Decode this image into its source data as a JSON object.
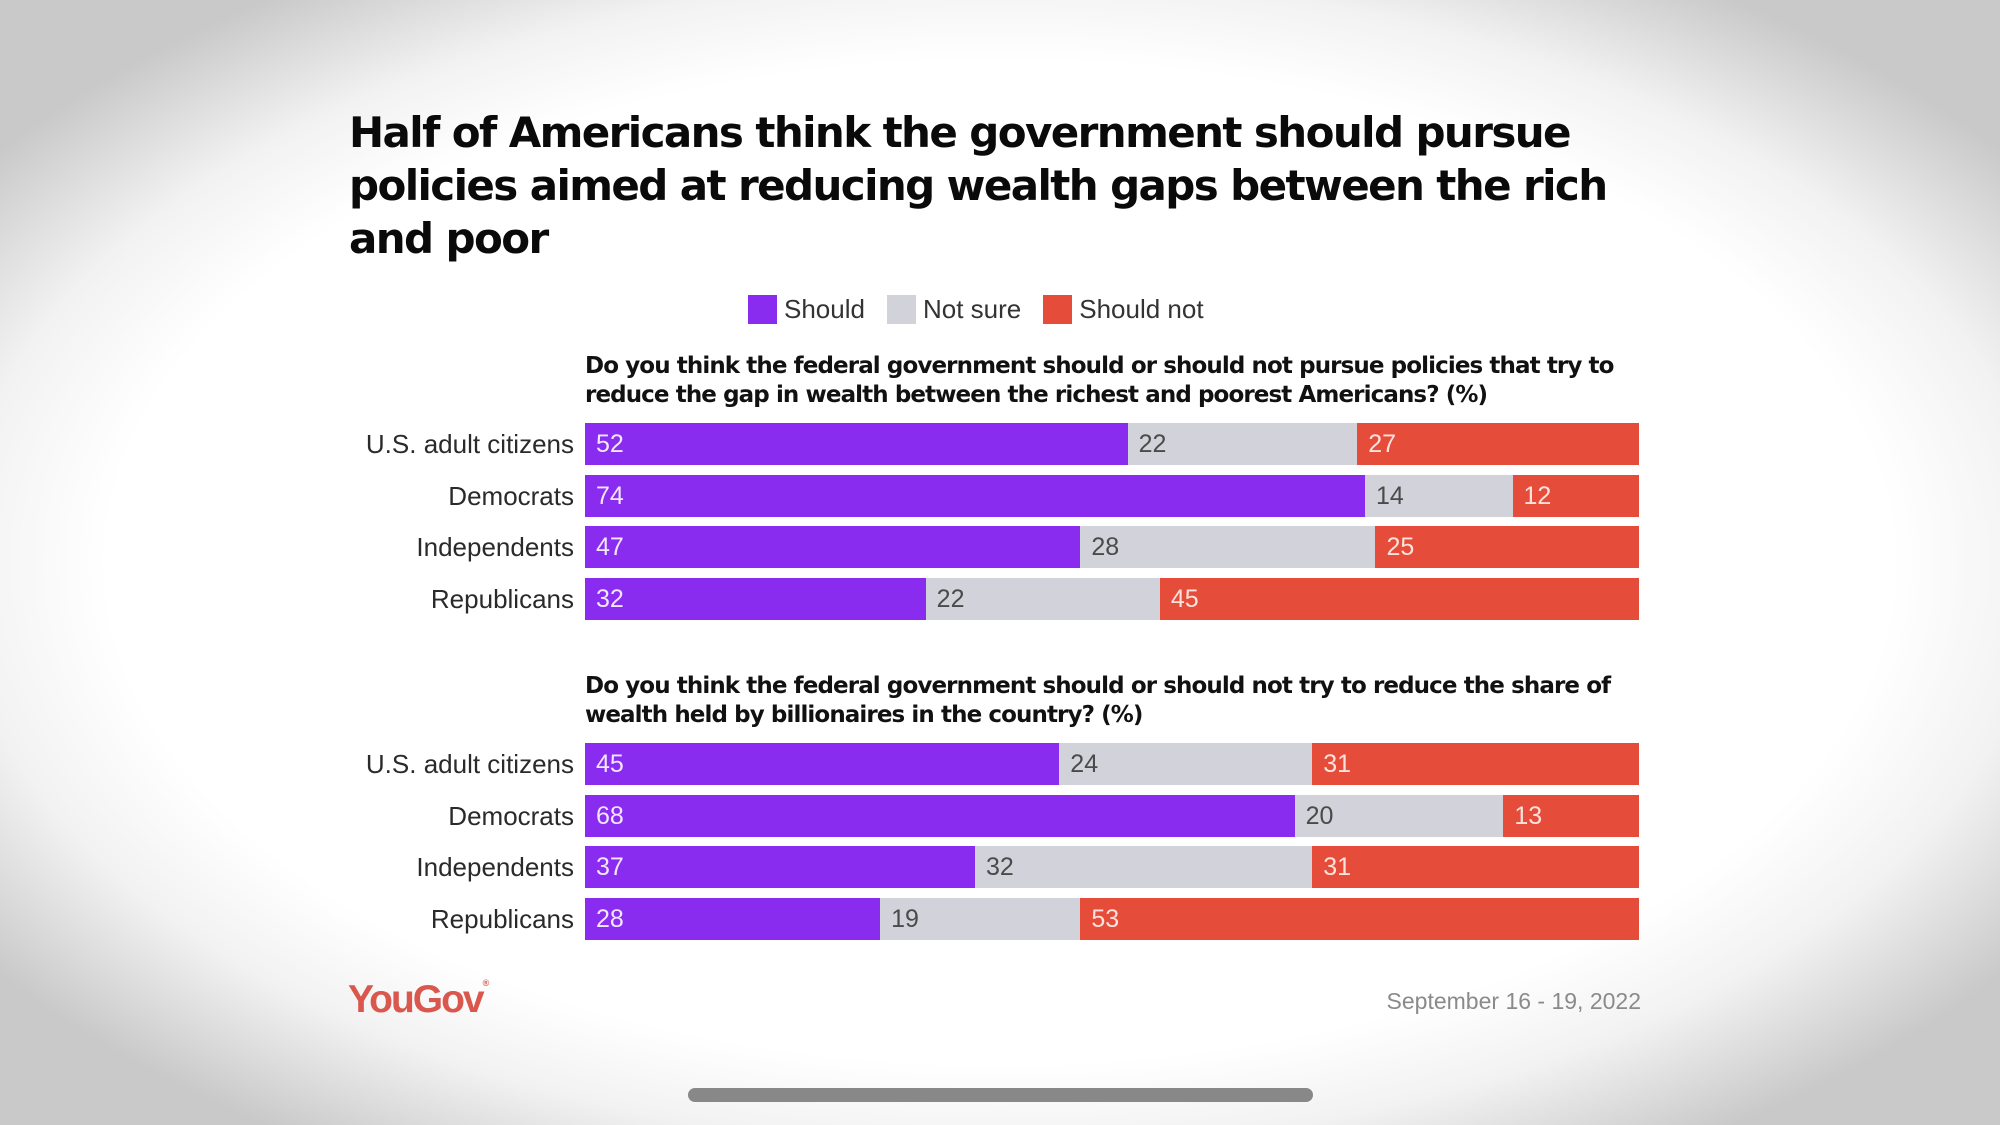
{
  "title": "Half of Americans think the government should pursue policies aimed at reducing wealth gaps between the rich and poor",
  "legend": [
    {
      "key": "should",
      "label": "Should",
      "color": "#8a2cf0"
    },
    {
      "key": "notsure",
      "label": "Not sure",
      "color": "#d2d3da"
    },
    {
      "key": "shouldnot",
      "label": "Should not",
      "color": "#e54d3a"
    }
  ],
  "footer": {
    "brand": "YouGov",
    "date": "September 16 - 19, 2022"
  },
  "chart_data": [
    {
      "type": "bar",
      "orientation": "horizontal",
      "stacked": true,
      "title": "Do you think the federal government should or should not pursue policies that try to reduce the gap in wealth between the richest and poorest Americans? (%)",
      "categories": [
        "U.S. adult citizens",
        "Democrats",
        "Independents",
        "Republicans"
      ],
      "series": [
        {
          "name": "Should",
          "values": [
            52,
            74,
            47,
            32
          ]
        },
        {
          "name": "Not sure",
          "values": [
            22,
            14,
            28,
            22
          ]
        },
        {
          "name": "Should not",
          "values": [
            27,
            12,
            25,
            45
          ]
        }
      ],
      "xlabel": "",
      "ylabel": "",
      "xlim": [
        0,
        100
      ],
      "grid": false,
      "legend": "top-center"
    },
    {
      "type": "bar",
      "orientation": "horizontal",
      "stacked": true,
      "title": "Do you think the federal government should or should not try to reduce the share of wealth held by billionaires in the country? (%)",
      "categories": [
        "U.S. adult citizens",
        "Democrats",
        "Independents",
        "Republicans"
      ],
      "series": [
        {
          "name": "Should",
          "values": [
            45,
            68,
            37,
            28
          ]
        },
        {
          "name": "Not sure",
          "values": [
            24,
            20,
            32,
            19
          ]
        },
        {
          "name": "Should not",
          "values": [
            31,
            13,
            31,
            53
          ]
        }
      ],
      "xlabel": "",
      "ylabel": "",
      "xlim": [
        0,
        100
      ],
      "grid": false,
      "legend": "top-center"
    }
  ]
}
